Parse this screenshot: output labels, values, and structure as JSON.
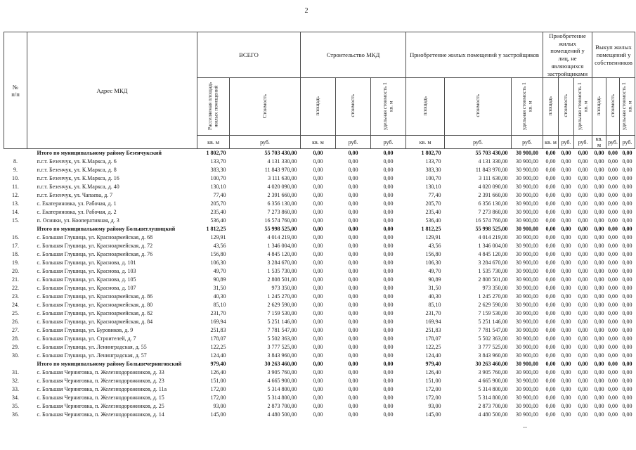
{
  "page_number": "2",
  "table": {
    "corner_num": "№\nп/п",
    "corner_address": "Адрес МКД",
    "zero_value": "0,00",
    "groups": [
      {
        "label": "ВСЕГО",
        "cols": [
          {
            "label": "Расселяемая площадь жилых помещений",
            "unit": "кв. м"
          },
          {
            "label": "Стоимость",
            "unit": "руб."
          }
        ]
      },
      {
        "label": "Строительство МКД",
        "cols": [
          {
            "label": "площадь",
            "unit": "кв. м"
          },
          {
            "label": "стоимость",
            "unit": "руб."
          },
          {
            "label": "удельная стоимость 1 кв. м",
            "unit": "руб."
          }
        ]
      },
      {
        "label": "Приобретение жилых помещений у застройщиков",
        "cols": [
          {
            "label": "площадь",
            "unit": "кв. м"
          },
          {
            "label": "стоимость",
            "unit": "руб."
          },
          {
            "label": "удельная стоимость 1 кв. м",
            "unit": "руб."
          }
        ]
      },
      {
        "label": "Приобретение жилых помещений у лиц, не являющихся застройщиками",
        "cols": [
          {
            "label": "площадь",
            "unit": "кв. м"
          },
          {
            "label": "стоимость",
            "unit": "руб."
          },
          {
            "label": "удельная стоимость 1 кв. м",
            "unit": "руб."
          }
        ]
      },
      {
        "label": "Выкуп жилых помещений у собственников",
        "cols": [
          {
            "label": "площадь",
            "unit": "кв. м"
          },
          {
            "label": "стоимость",
            "unit": "руб."
          },
          {
            "label": "удельная стоимость 1 кв. м",
            "unit": "руб."
          }
        ]
      }
    ],
    "rows": [
      {
        "type": "total",
        "num": "",
        "address": "Итого по муниципальному району Безенчукский",
        "area": "1 802,70",
        "cost": "55 703 430,00",
        "unit_cost": "30 900,00"
      },
      {
        "type": "item",
        "num": "8.",
        "address": "п.г.т. Безенчук, ул. К.Маркса, д. 6",
        "area": "133,70",
        "cost": "4 131 330,00",
        "unit_cost": "30 900,00"
      },
      {
        "type": "item",
        "num": "9.",
        "address": "п.г.т. Безенчук, ул. К.Маркса, д. 8",
        "area": "383,30",
        "cost": "11 843 970,00",
        "unit_cost": "30 900,00"
      },
      {
        "type": "item",
        "num": "10.",
        "address": "п.г.т. Безенчук, ул. К.Маркса, д. 16",
        "area": "100,70",
        "cost": "3 111 630,00",
        "unit_cost": "30 900,00"
      },
      {
        "type": "item",
        "num": "11.",
        "address": "п.г.т. Безенчук, ул. К.Маркса, д. 40",
        "area": "130,10",
        "cost": "4 020 090,00",
        "unit_cost": "30 900,00"
      },
      {
        "type": "item",
        "num": "12.",
        "address": "п.г.т. Безенчук, ул. Чапаева, д. 7",
        "area": "77,40",
        "cost": "2 391 660,00",
        "unit_cost": "30 900,00"
      },
      {
        "type": "item",
        "num": "13.",
        "address": "с. Екатериновка, ул. Рабочая, д. 1",
        "area": "205,70",
        "cost": "6 356 130,00",
        "unit_cost": "30 900,00"
      },
      {
        "type": "item",
        "num": "14.",
        "address": "с. Екатериновка, ул. Рабочая, д. 2",
        "area": "235,40",
        "cost": "7 273 860,00",
        "unit_cost": "30 900,00"
      },
      {
        "type": "item",
        "num": "15.",
        "address": "п. Осинки, ул. Кооперативная, д. 3",
        "area": "536,40",
        "cost": "16 574 760,00",
        "unit_cost": "30 900,00"
      },
      {
        "type": "total",
        "num": "",
        "address": "Итого по муниципальному району Большеглушицкий",
        "area": "1 812,25",
        "cost": "55 998 525,00",
        "unit_cost": "30 900,00"
      },
      {
        "type": "item",
        "num": "16.",
        "address": "с. Большая Глушица, ул. Красноармейская, д. 68",
        "area": "129,91",
        "cost": "4 014 219,00",
        "unit_cost": "30 900,00"
      },
      {
        "type": "item",
        "num": "17.",
        "address": "с. Большая Глушица, ул. Красноармейская, д. 72",
        "area": "43,56",
        "cost": "1 346 004,00",
        "unit_cost": "30 900,00"
      },
      {
        "type": "item",
        "num": "18.",
        "address": "с. Большая Глушица, ул. Красноармейская, д. 76",
        "area": "156,80",
        "cost": "4 845 120,00",
        "unit_cost": "30 900,00"
      },
      {
        "type": "item",
        "num": "19.",
        "address": "с. Большая Глушица, ул. Краснова, д. 101",
        "area": "106,30",
        "cost": "3 284 670,00",
        "unit_cost": "30 900,00"
      },
      {
        "type": "item",
        "num": "20.",
        "address": "с. Большая Глушица, ул. Краснова, д. 103",
        "area": "49,70",
        "cost": "1 535 730,00",
        "unit_cost": "30 900,00"
      },
      {
        "type": "item",
        "num": "21.",
        "address": "с. Большая Глушица, ул. Краснова, д. 105",
        "area": "90,89",
        "cost": "2 808 501,00",
        "unit_cost": "30 900,00"
      },
      {
        "type": "item",
        "num": "22.",
        "address": "с. Большая Глушица, ул. Краснова, д. 107",
        "area": "31,50",
        "cost": "973 350,00",
        "unit_cost": "30 900,00"
      },
      {
        "type": "item",
        "num": "23.",
        "address": "с. Большая Глушица, ул. Красноармейская, д. 86",
        "area": "40,30",
        "cost": "1 245 270,00",
        "unit_cost": "30 900,00"
      },
      {
        "type": "item",
        "num": "24.",
        "address": "с. Большая Глушица, ул. Красноармейская, д. 80",
        "area": "85,10",
        "cost": "2 629 590,00",
        "unit_cost": "30 900,00"
      },
      {
        "type": "item",
        "num": "25.",
        "address": "с. Большая Глушица, ул. Красноармейская, д. 82",
        "area": "231,70",
        "cost": "7 159 530,00",
        "unit_cost": "30 900,00"
      },
      {
        "type": "item",
        "num": "26.",
        "address": "с. Большая Глушица, ул. Красноармейская, д. 84",
        "area": "169,94",
        "cost": "5 251 146,00",
        "unit_cost": "30 900,00"
      },
      {
        "type": "item",
        "num": "27.",
        "address": "с. Большая Глушица, ул. Буровиков, д. 9",
        "area": "251,83",
        "cost": "7 781 547,00",
        "unit_cost": "30 900,00"
      },
      {
        "type": "item",
        "num": "28.",
        "address": "с. Большая Глушица, ул. Строителей, д. 7",
        "area": "178,07",
        "cost": "5 502 363,00",
        "unit_cost": "30 900,00"
      },
      {
        "type": "item",
        "num": "29.",
        "address": "с. Большая Глушица, ул. Ленинградская, д. 55",
        "area": "122,25",
        "cost": "3 777 525,00",
        "unit_cost": "30 900,00"
      },
      {
        "type": "item",
        "num": "30.",
        "address": "с. Большая Глушица, ул. Ленинградская, д. 57",
        "area": "124,40",
        "cost": "3 843 960,00",
        "unit_cost": "30 900,00"
      },
      {
        "type": "total",
        "num": "",
        "address": "Итого по муниципальному району Большечерниговский",
        "area": "979,40",
        "cost": "30 263 460,00",
        "unit_cost": "30 900,00"
      },
      {
        "type": "item",
        "num": "31.",
        "address": "с. Большая Черниговка, п. Железнодорожников, д. 33",
        "area": "126,40",
        "cost": "3 905 760,00",
        "unit_cost": "30 900,00"
      },
      {
        "type": "item",
        "num": "32.",
        "address": "с. Большая Черниговка, п. Железнодорожников, д. 23",
        "area": "151,00",
        "cost": "4 665 900,00",
        "unit_cost": "30 900,00"
      },
      {
        "type": "item",
        "num": "33.",
        "address": "с. Большая Черниговка, п. Железнодорожников, д. 11а",
        "area": "172,00",
        "cost": "5 314 800,00",
        "unit_cost": "30 900,00"
      },
      {
        "type": "item",
        "num": "34.",
        "address": "с. Большая Черниговка, п. Железнодорожников, д. 15",
        "area": "172,00",
        "cost": "5 314 800,00",
        "unit_cost": "30 900,00"
      },
      {
        "type": "item",
        "num": "35.",
        "address": "с. Большая Черниговка, п. Железнодорожников, д. 25",
        "area": "93,00",
        "cost": "2 873 700,00",
        "unit_cost": "30 900,00"
      },
      {
        "type": "item",
        "num": "36.",
        "address": "с. Большая Черниговка, п. Железнодорожников, д. 14",
        "area": "145,00",
        "cost": "4 480 500,00",
        "unit_cost": "30 900,00"
      }
    ]
  }
}
